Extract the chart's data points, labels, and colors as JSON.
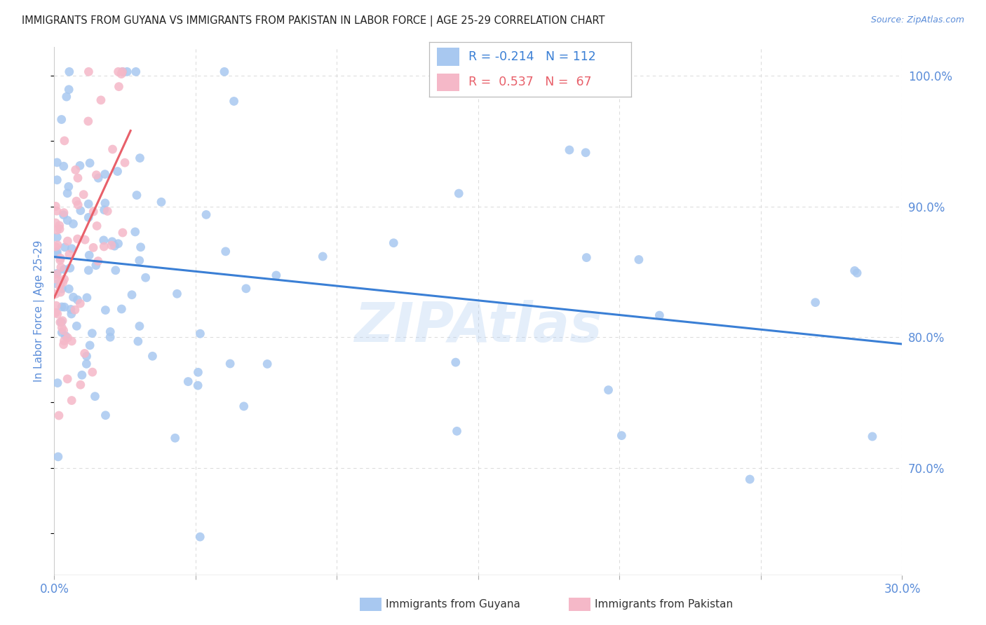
{
  "title": "IMMIGRANTS FROM GUYANA VS IMMIGRANTS FROM PAKISTAN IN LABOR FORCE | AGE 25-29 CORRELATION CHART",
  "source": "Source: ZipAtlas.com",
  "ylabel": "In Labor Force | Age 25-29",
  "xlim": [
    0.0,
    0.3
  ],
  "ylim": [
    0.618,
    1.022
  ],
  "yticks": [
    0.7,
    0.8,
    0.9,
    1.0
  ],
  "yticklabels": [
    "70.0%",
    "80.0%",
    "90.0%",
    "100.0%"
  ],
  "xtick_positions": [
    0.0,
    0.05,
    0.1,
    0.15,
    0.2,
    0.25,
    0.3
  ],
  "guyana_color": "#a8c8f0",
  "pakistan_color": "#f5b8c8",
  "guyana_line_color": "#3a7fd5",
  "pakistan_line_color": "#e8606a",
  "guyana_R": -0.214,
  "guyana_N": 112,
  "pakistan_R": 0.537,
  "pakistan_N": 67,
  "watermark": "ZIPAtlas",
  "background_color": "#ffffff",
  "grid_color": "#dddddd",
  "tick_color": "#5b8dd9",
  "title_color": "#222222",
  "source_color": "#5b8dd9",
  "legend_text_guyana_color": "#3a7fd5",
  "legend_text_pakistan_color": "#e8606a",
  "guyana_line_x0": 0.0,
  "guyana_line_y0": 0.873,
  "guyana_line_x1": 0.3,
  "guyana_line_y1": 0.77,
  "pakistan_line_x0": 0.0,
  "pakistan_line_y0": 0.798,
  "pakistan_line_x1": 0.027,
  "pakistan_line_y1": 1.005
}
